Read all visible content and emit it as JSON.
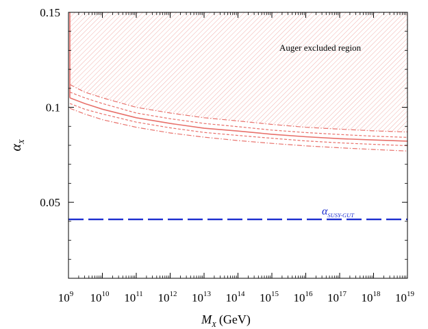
{
  "chart_data": {
    "type": "line",
    "xlabel_main": "M",
    "xlabel_sub": "X",
    "xlabel_unit": "(GeV)",
    "ylabel_main": "α",
    "ylabel_sub": "X",
    "x_scale": "log",
    "xlim": [
      1000000000.0,
      1e+19
    ],
    "ylim": [
      0.01,
      0.15
    ],
    "x_ticks": [
      {
        "base": "10",
        "exp": "9",
        "value": 1000000000.0
      },
      {
        "base": "10",
        "exp": "10",
        "value": 10000000000.0
      },
      {
        "base": "10",
        "exp": "11",
        "value": 100000000000.0
      },
      {
        "base": "10",
        "exp": "12",
        "value": 1000000000000.0
      },
      {
        "base": "10",
        "exp": "13",
        "value": 10000000000000.0
      },
      {
        "base": "10",
        "exp": "14",
        "value": 100000000000000.0
      },
      {
        "base": "10",
        "exp": "15",
        "value": 1000000000000000.0
      },
      {
        "base": "10",
        "exp": "16",
        "value": 1e+16
      },
      {
        "base": "10",
        "exp": "17",
        "value": 1e+17
      },
      {
        "base": "10",
        "exp": "18",
        "value": 1e+18
      },
      {
        "base": "10",
        "exp": "19",
        "value": 1e+19
      }
    ],
    "y_ticks": [
      {
        "label": "0.05",
        "value": 0.05
      },
      {
        "label": "0.1",
        "value": 0.1
      },
      {
        "label": "0.15",
        "value": 0.15
      }
    ],
    "region_label": "Auger excluded region",
    "susy_label_main": "α",
    "susy_label_sub": "SUSY-GUT",
    "susy_value": 0.041,
    "series": [
      {
        "style": "solid",
        "x": [
          1000000000.0,
          3000000000.0,
          10000000000.0,
          100000000000.0,
          1000000000000.0,
          10000000000000.0,
          100000000000000.0,
          1000000000000000.0,
          1e+16,
          1e+17,
          1e+18,
          1e+19
        ],
        "y": [
          0.105,
          0.102,
          0.099,
          0.0945,
          0.0915,
          0.089,
          0.0875,
          0.0858,
          0.0845,
          0.0835,
          0.0828,
          0.0822
        ]
      },
      {
        "style": "dashed",
        "x": [
          1000000000.0,
          3000000000.0,
          10000000000.0,
          100000000000.0,
          1000000000000.0,
          10000000000000.0,
          100000000000000.0,
          1000000000000000.0,
          1e+16,
          1e+17,
          1e+18,
          1e+19
        ],
        "y": [
          0.108,
          0.105,
          0.102,
          0.097,
          0.094,
          0.0915,
          0.0898,
          0.088,
          0.0867,
          0.0857,
          0.0848,
          0.0842
        ]
      },
      {
        "style": "dashed",
        "x": [
          1000000000.0,
          3000000000.0,
          10000000000.0,
          100000000000.0,
          1000000000000.0,
          10000000000000.0,
          100000000000000.0,
          1000000000000000.0,
          1e+16,
          1e+17,
          1e+18,
          1e+19
        ],
        "y": [
          0.102,
          0.099,
          0.0965,
          0.0922,
          0.0892,
          0.0868,
          0.0852,
          0.0837,
          0.0823,
          0.0813,
          0.0805,
          0.0798
        ]
      },
      {
        "style": "dashdot",
        "x": [
          1000000000.0,
          3000000000.0,
          10000000000.0,
          100000000000.0,
          1000000000000.0,
          10000000000000.0,
          100000000000000.0,
          1000000000000000.0,
          1e+16,
          1e+17,
          1e+18,
          1e+19
        ],
        "y": [
          0.112,
          0.108,
          0.105,
          0.1,
          0.097,
          0.0945,
          0.0928,
          0.091,
          0.0895,
          0.0885,
          0.0876,
          0.087
        ]
      },
      {
        "style": "dashdot",
        "x": [
          1000000000.0,
          3000000000.0,
          10000000000.0,
          100000000000.0,
          1000000000000.0,
          10000000000000.0,
          100000000000000.0,
          1000000000000000.0,
          1e+16,
          1e+17,
          1e+18,
          1e+19
        ],
        "y": [
          0.0995,
          0.0965,
          0.0935,
          0.0895,
          0.0865,
          0.0843,
          0.0825,
          0.081,
          0.0797,
          0.0787,
          0.0778,
          0.077
        ]
      }
    ],
    "colors": {
      "curve": "#e8706a",
      "hatch": "#f0a5a0",
      "susy": "#1a2ccf",
      "axis": "#000000"
    }
  }
}
